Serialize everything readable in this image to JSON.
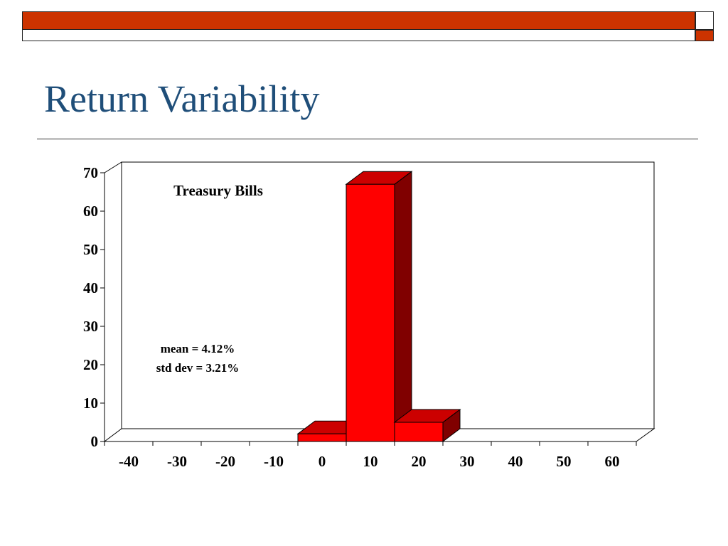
{
  "slide": {
    "title": "Return Variability"
  },
  "colors": {
    "accent_bar": "#cc3300",
    "title_text": "#1f4e79",
    "bar_front": "#ff0000",
    "bar_top": "#cc0000",
    "bar_side": "#800000"
  },
  "chart_data": {
    "type": "bar",
    "three_d": true,
    "title": "Treasury Bills",
    "annotations": [
      "mean = 4.12%",
      "std dev = 3.21%"
    ],
    "categories": [
      "-40",
      "-30",
      "-20",
      "-10",
      "0",
      "10",
      "20",
      "30",
      "40",
      "50",
      "60"
    ],
    "values": [
      0,
      0,
      0,
      0,
      2,
      67,
      5,
      0,
      0,
      0,
      0
    ],
    "ylim": [
      0,
      70
    ],
    "yticks": [
      0,
      10,
      20,
      30,
      40,
      50,
      60,
      70
    ],
    "xlabel": "",
    "ylabel": "",
    "grid": false,
    "legend": "none"
  }
}
